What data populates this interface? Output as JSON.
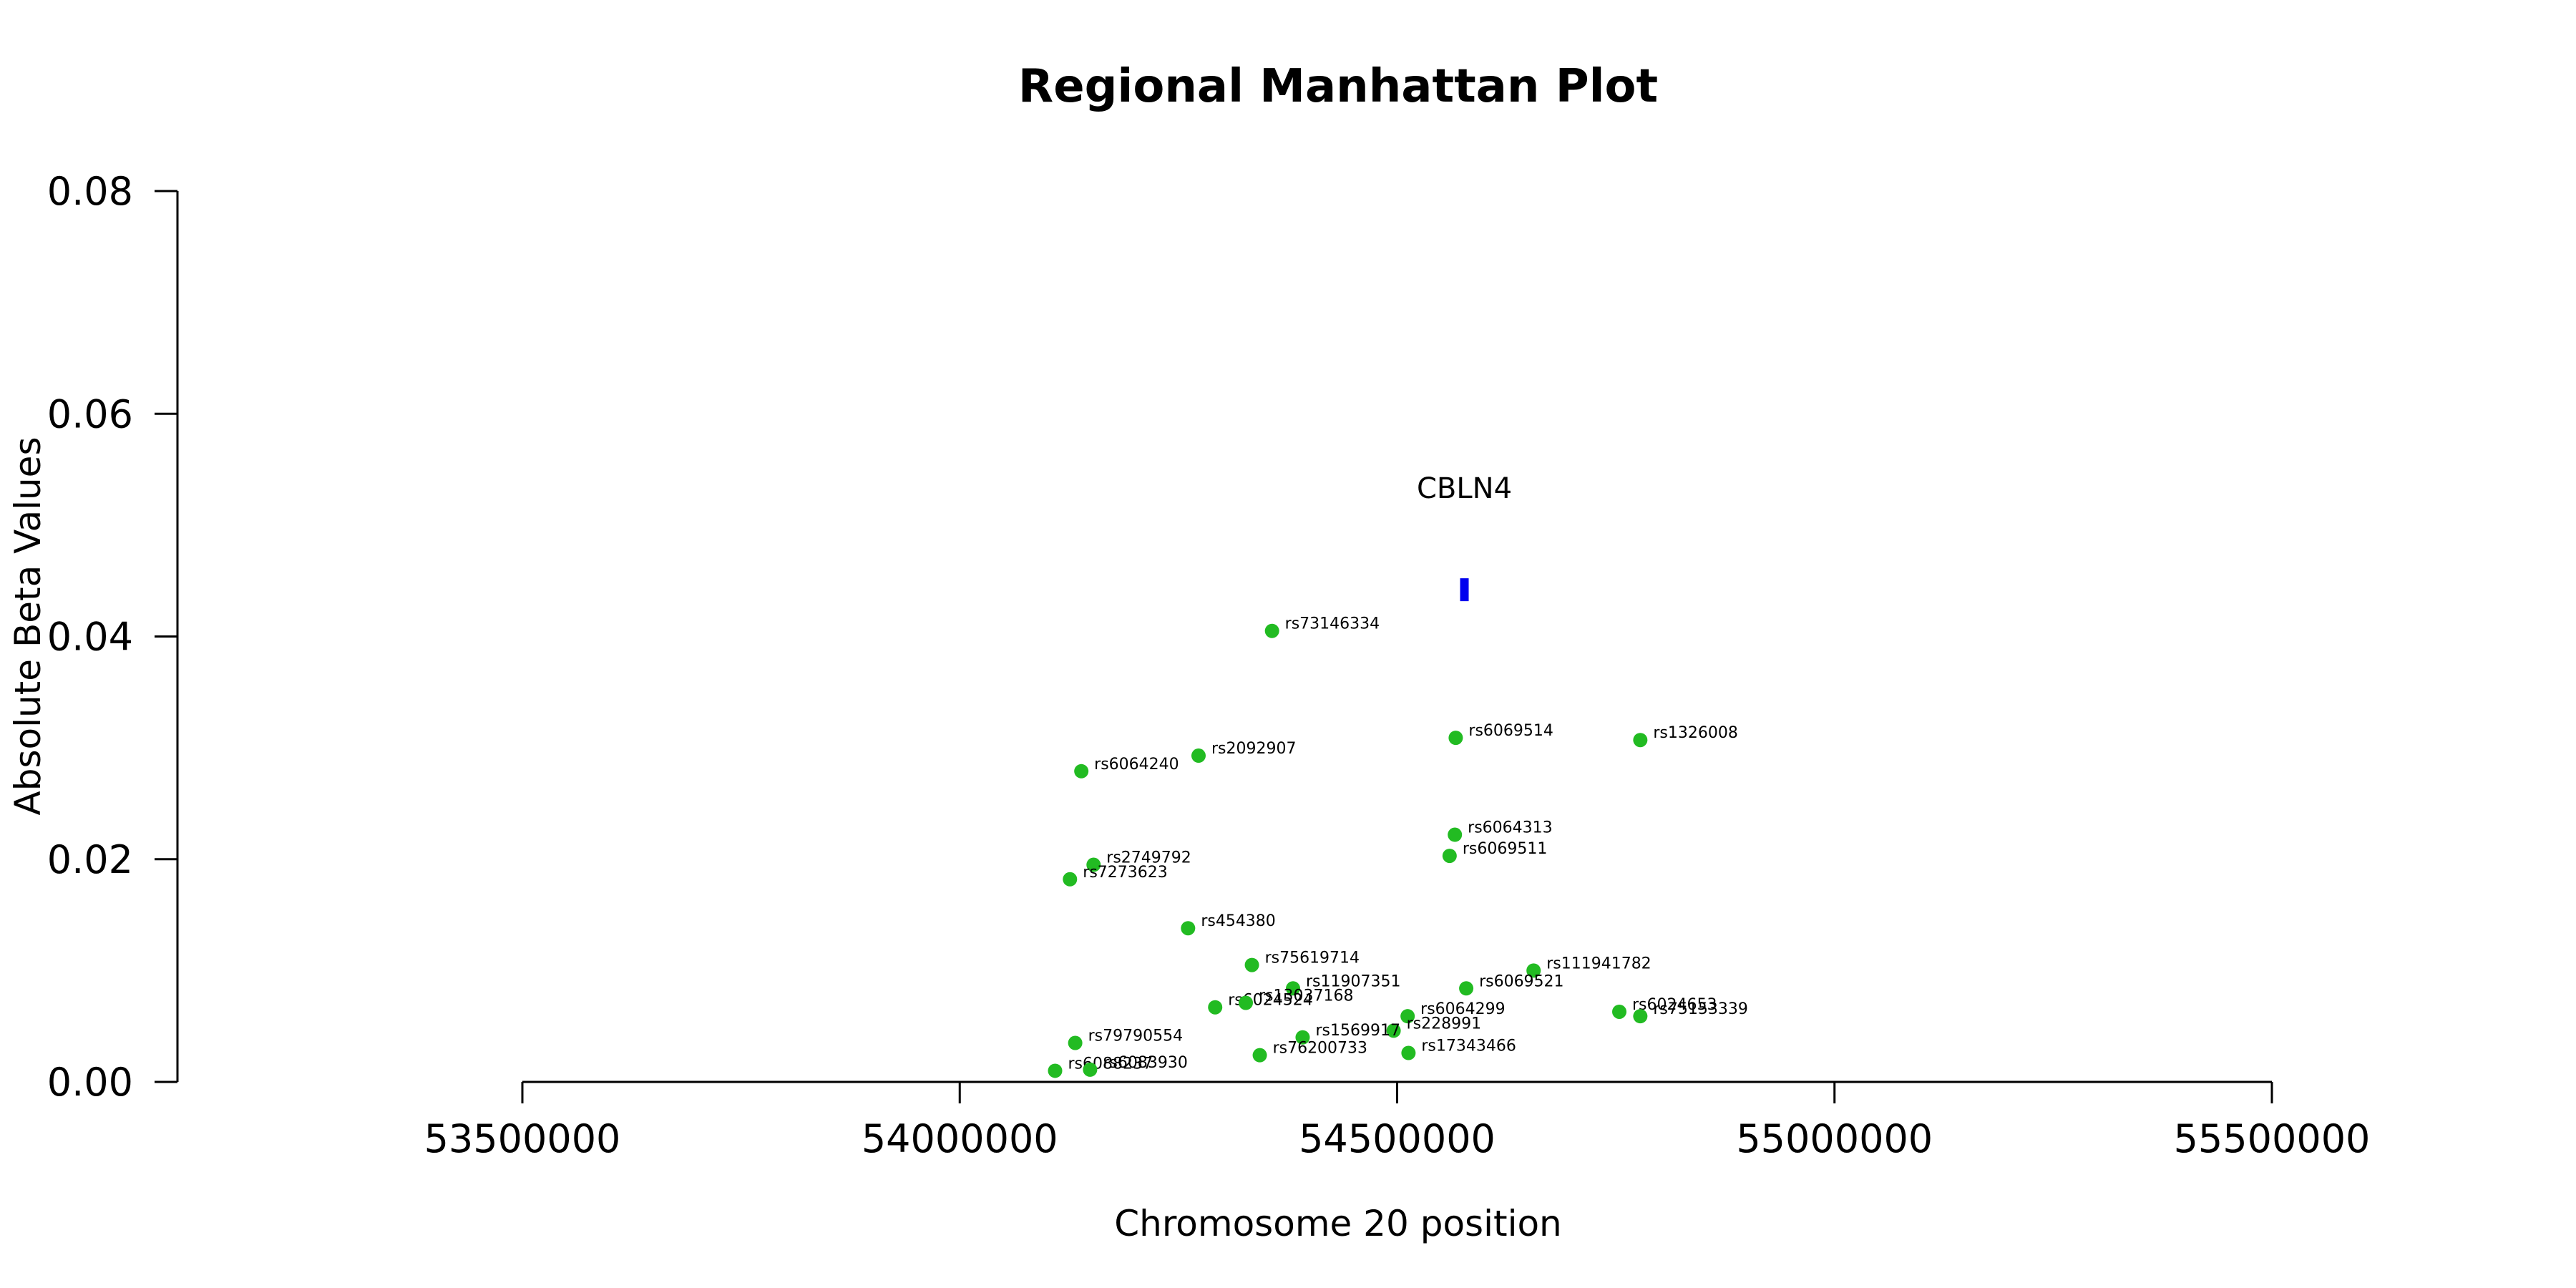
{
  "chart_data": {
    "type": "scatter",
    "title": "Regional Manhattan Plot",
    "xlabel": "Chromosome 20 position",
    "ylabel": "Absolute Beta Values",
    "xlim": [
      53500000,
      55500000
    ],
    "ylim": [
      0.0,
      0.08
    ],
    "x_ticks": [
      53500000,
      54000000,
      54500000,
      55000000,
      55500000
    ],
    "x_tick_labels": [
      "53500000",
      "54000000",
      "54500000",
      "55000000",
      "55500000"
    ],
    "y_ticks": [
      0.0,
      0.02,
      0.04,
      0.06,
      0.08
    ],
    "y_tick_labels": [
      "0.00",
      "0.02",
      "0.04",
      "0.06",
      "0.08"
    ],
    "grid": false,
    "point_color": "#22bb22",
    "gene_color": "#0000ee",
    "points": [
      {
        "label": "rs73146334",
        "x": 54357000,
        "y": 0.0405
      },
      {
        "label": "rs6069514",
        "x": 54567000,
        "y": 0.0309
      },
      {
        "label": "rs1326008",
        "x": 54778000,
        "y": 0.0307
      },
      {
        "label": "rs2092907",
        "x": 54273000,
        "y": 0.0293
      },
      {
        "label": "rs6064240",
        "x": 54139000,
        "y": 0.0279
      },
      {
        "label": "rs6064313",
        "x": 54566000,
        "y": 0.0222
      },
      {
        "label": "rs6069511",
        "x": 54560000,
        "y": 0.0203
      },
      {
        "label": "rs2749792",
        "x": 54153000,
        "y": 0.0195
      },
      {
        "label": "rs7273623",
        "x": 54126000,
        "y": 0.0182
      },
      {
        "label": "rs454380",
        "x": 54261000,
        "y": 0.0138
      },
      {
        "label": "rs75619714",
        "x": 54334000,
        "y": 0.0105
      },
      {
        "label": "rs111941782",
        "x": 54656000,
        "y": 0.01
      },
      {
        "label": "rs11907351",
        "x": 54381000,
        "y": 0.0084
      },
      {
        "label": "rs6069521",
        "x": 54579000,
        "y": 0.0084
      },
      {
        "label": "rs6024524",
        "x": 54292000,
        "y": 0.0067
      },
      {
        "label": "rs13037168",
        "x": 54327000,
        "y": 0.0071
      },
      {
        "label": "rs6024653",
        "x": 54754000,
        "y": 0.0063
      },
      {
        "label": "rs75153339",
        "x": 54778000,
        "y": 0.0059
      },
      {
        "label": "rs6064299",
        "x": 54512000,
        "y": 0.0059
      },
      {
        "label": "rs228991",
        "x": 54496000,
        "y": 0.0046
      },
      {
        "label": "rs1569917",
        "x": 54392000,
        "y": 0.004
      },
      {
        "label": "rs79790554",
        "x": 54132000,
        "y": 0.0035
      },
      {
        "label": "rs17343466",
        "x": 54513000,
        "y": 0.0026
      },
      {
        "label": "rs76200733",
        "x": 54343000,
        "y": 0.0024
      },
      {
        "label": "rs6088237",
        "x": 54109000,
        "y": 0.001
      },
      {
        "label": "rs6083930",
        "x": 54149000,
        "y": 0.0011
      }
    ],
    "genes": [
      {
        "name": "CBLN4",
        "start": 54572000,
        "end": 54581000,
        "y": 0.0442
      }
    ]
  }
}
